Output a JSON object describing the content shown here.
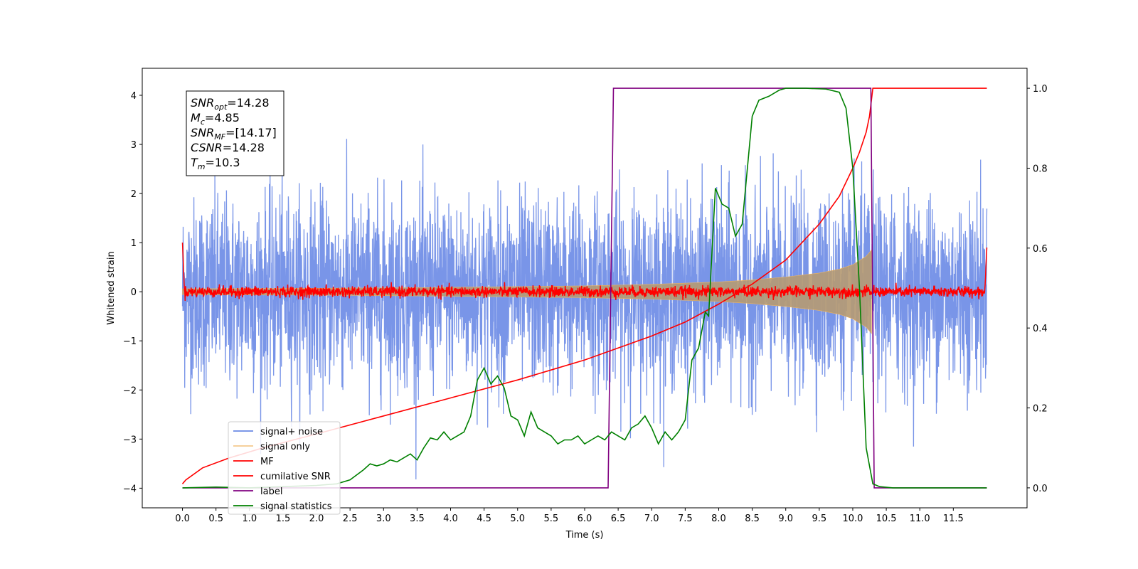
{
  "chart_data": {
    "type": "line",
    "title": "",
    "xlabel": "Time (s)",
    "ylabel": "Whitened strain",
    "y2label": "",
    "xlim": [
      -0.6,
      12.6
    ],
    "ylim": [
      -4.4,
      4.55
    ],
    "y2lim": [
      -0.05,
      1.05
    ],
    "x_ticks": [
      0.0,
      0.5,
      1.0,
      1.5,
      2.0,
      2.5,
      3.0,
      3.5,
      4.0,
      4.5,
      5.0,
      5.5,
      6.0,
      6.5,
      7.0,
      7.5,
      8.0,
      8.5,
      9.0,
      9.5,
      10.0,
      10.5,
      11.0,
      11.5
    ],
    "x_tick_labels": [
      "0.0",
      "0.5",
      "1.0",
      "1.5",
      "2.0",
      "2.5",
      "3.0",
      "3.5",
      "4.0",
      "4.5",
      "5.0",
      "5.5",
      "6.0",
      "6.5",
      "7.0",
      "7.5",
      "8.0",
      "8.5",
      "9.0",
      "9.5",
      "10.0",
      "10.5",
      "11.0",
      "11.5"
    ],
    "y_ticks": [
      -4,
      -3,
      -2,
      -1,
      0,
      1,
      2,
      3,
      4
    ],
    "y_tick_labels": [
      "−4",
      "−3",
      "−2",
      "−1",
      "0",
      "1",
      "2",
      "3",
      "4"
    ],
    "y2_ticks": [
      0.0,
      0.2,
      0.4,
      0.6,
      0.8,
      1.0
    ],
    "y2_tick_labels": [
      "0.0",
      "0.2",
      "0.4",
      "0.6",
      "0.8",
      "1.0"
    ],
    "grid": false,
    "legend_position": "lower-left",
    "series": [
      {
        "name": "signal+ noise",
        "axis": "left",
        "color": "#6a89e5",
        "description_values": {
          "x_start": 0.0,
          "x_end": 12.0,
          "envelope_min": -4.0,
          "envelope_max": 3.4,
          "typical_range": [
            -2.6,
            2.4
          ]
        }
      },
      {
        "name": "signal only",
        "axis": "left",
        "color": "#f0b45c",
        "envelope": {
          "x": [
            0.0,
            2.0,
            4.0,
            6.0,
            7.0,
            8.0,
            8.5,
            9.0,
            9.5,
            9.8,
            10.0,
            10.2,
            10.28
          ],
          "amplitude": [
            0.06,
            0.07,
            0.09,
            0.12,
            0.15,
            0.2,
            0.24,
            0.3,
            0.38,
            0.46,
            0.55,
            0.72,
            0.85
          ]
        }
      },
      {
        "name": "MF",
        "axis": "left",
        "color": "#ff0000",
        "description_values": {
          "x_start": 0.0,
          "x_end": 12.0,
          "baseline": 0.0,
          "noise_amplitude": 0.12,
          "start_value": 1.0,
          "end_value": 0.9
        }
      },
      {
        "name": "cumilative SNR",
        "axis": "right",
        "x": [
          0.0,
          0.05,
          0.3,
          0.7,
          1.2,
          2.0,
          3.0,
          4.0,
          5.0,
          6.0,
          6.5,
          7.0,
          7.5,
          8.0,
          8.5,
          9.0,
          9.5,
          9.8,
          10.0,
          10.1,
          10.2,
          10.25,
          10.3,
          12.0
        ],
        "y": [
          0.01,
          0.02,
          0.05,
          0.075,
          0.1,
          0.135,
          0.18,
          0.225,
          0.27,
          0.32,
          0.35,
          0.38,
          0.415,
          0.46,
          0.51,
          0.57,
          0.66,
          0.73,
          0.8,
          0.84,
          0.89,
          0.93,
          1.0,
          1.0
        ]
      },
      {
        "name": "label",
        "axis": "right",
        "color": "#800080",
        "x": [
          0.0,
          6.35,
          6.43,
          10.27,
          10.32,
          12.0
        ],
        "y": [
          0.0,
          0.0,
          1.0,
          1.0,
          0.0,
          0.0
        ]
      },
      {
        "name": "signal statistics",
        "axis": "right",
        "color": "#008000",
        "x": [
          0.0,
          0.5,
          1.0,
          1.5,
          2.0,
          2.3,
          2.5,
          2.7,
          2.8,
          2.9,
          3.0,
          3.1,
          3.2,
          3.3,
          3.4,
          3.5,
          3.6,
          3.7,
          3.8,
          3.9,
          4.0,
          4.1,
          4.2,
          4.3,
          4.4,
          4.5,
          4.6,
          4.7,
          4.8,
          4.9,
          5.0,
          5.1,
          5.2,
          5.3,
          5.4,
          5.5,
          5.6,
          5.7,
          5.8,
          5.9,
          6.0,
          6.1,
          6.2,
          6.3,
          6.4,
          6.5,
          6.6,
          6.7,
          6.8,
          6.9,
          7.0,
          7.1,
          7.2,
          7.3,
          7.4,
          7.5,
          7.6,
          7.7,
          7.8,
          7.85,
          7.95,
          8.05,
          8.15,
          8.25,
          8.35,
          8.5,
          8.6,
          8.75,
          8.9,
          9.0,
          9.3,
          9.6,
          9.8,
          9.9,
          10.0,
          10.1,
          10.2,
          10.3,
          10.4,
          10.6,
          11.0,
          12.0
        ],
        "y": [
          0.0,
          0.002,
          0.0,
          0.003,
          0.006,
          0.01,
          0.02,
          0.045,
          0.06,
          0.055,
          0.06,
          0.07,
          0.065,
          0.075,
          0.085,
          0.07,
          0.1,
          0.125,
          0.12,
          0.14,
          0.12,
          0.13,
          0.14,
          0.18,
          0.27,
          0.3,
          0.26,
          0.28,
          0.25,
          0.18,
          0.17,
          0.13,
          0.19,
          0.15,
          0.14,
          0.13,
          0.11,
          0.12,
          0.12,
          0.13,
          0.11,
          0.12,
          0.13,
          0.12,
          0.14,
          0.13,
          0.12,
          0.15,
          0.16,
          0.18,
          0.15,
          0.11,
          0.14,
          0.12,
          0.14,
          0.17,
          0.32,
          0.35,
          0.44,
          0.43,
          0.75,
          0.71,
          0.7,
          0.63,
          0.66,
          0.93,
          0.97,
          0.98,
          0.995,
          1.0,
          1.0,
          0.998,
          0.99,
          0.95,
          0.8,
          0.5,
          0.1,
          0.01,
          0.003,
          0.0,
          0.0,
          0.0
        ]
      }
    ],
    "annotation_box": {
      "lines": [
        {
          "main": "SNR",
          "sub": "opt",
          "value": "=14.28"
        },
        {
          "main": "M",
          "sub": "c",
          "value": "=4.85"
        },
        {
          "main": "SNR",
          "sub": "MF",
          "value": "=[14.17]"
        },
        {
          "main": "CSNR",
          "sub": "",
          "value": "=14.28"
        },
        {
          "main": "T",
          "sub": "m",
          "value": "=10.3"
        }
      ]
    },
    "legend_entries": [
      {
        "label": "signal+ noise",
        "color": "#6a89e5"
      },
      {
        "label": "signal only",
        "color": "#f0b45c"
      },
      {
        "label": "MF",
        "color": "#ff0000"
      },
      {
        "label": "cumilative SNR",
        "color": "#ff0000"
      },
      {
        "label": "label",
        "color": "#800080"
      },
      {
        "label": "signal statistics",
        "color": "#008000"
      }
    ]
  }
}
